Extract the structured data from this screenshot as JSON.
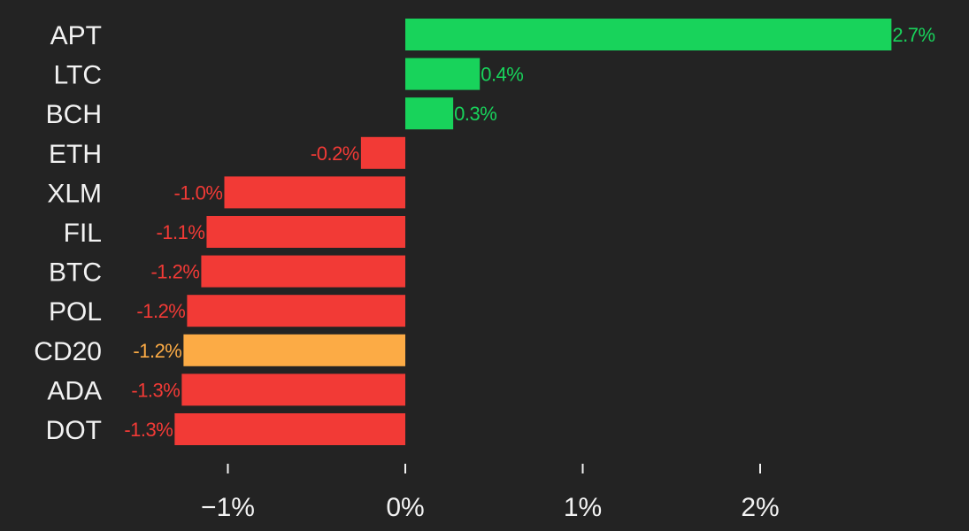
{
  "chart_data": {
    "type": "bar",
    "orientation": "horizontal",
    "categories": [
      "APT",
      "LTC",
      "BCH",
      "ETH",
      "XLM",
      "FIL",
      "BTC",
      "POL",
      "CD20",
      "ADA",
      "DOT"
    ],
    "values": [
      2.74,
      0.42,
      0.27,
      -0.25,
      -1.02,
      -1.12,
      -1.15,
      -1.23,
      -1.25,
      -1.26,
      -1.3
    ],
    "value_labels": [
      "2.7%",
      "0.4%",
      "0.3%",
      "-0.2%",
      "-1.0%",
      "-1.1%",
      "-1.2%",
      "-1.2%",
      "-1.2%",
      "-1.3%",
      "-1.3%"
    ],
    "x_ticks": [
      -1,
      0,
      1,
      2
    ],
    "x_tick_labels": [
      "−1%",
      "0%",
      "1%",
      "2%"
    ],
    "xlim": [
      -1.5,
      3.0
    ],
    "grid": false,
    "colors": {
      "positive": "#18d35b",
      "negative": "#f23a36",
      "highlight": "#fcab45",
      "highlight_category": "CD20",
      "background": "#232323",
      "text": "#f2f2f2"
    }
  }
}
